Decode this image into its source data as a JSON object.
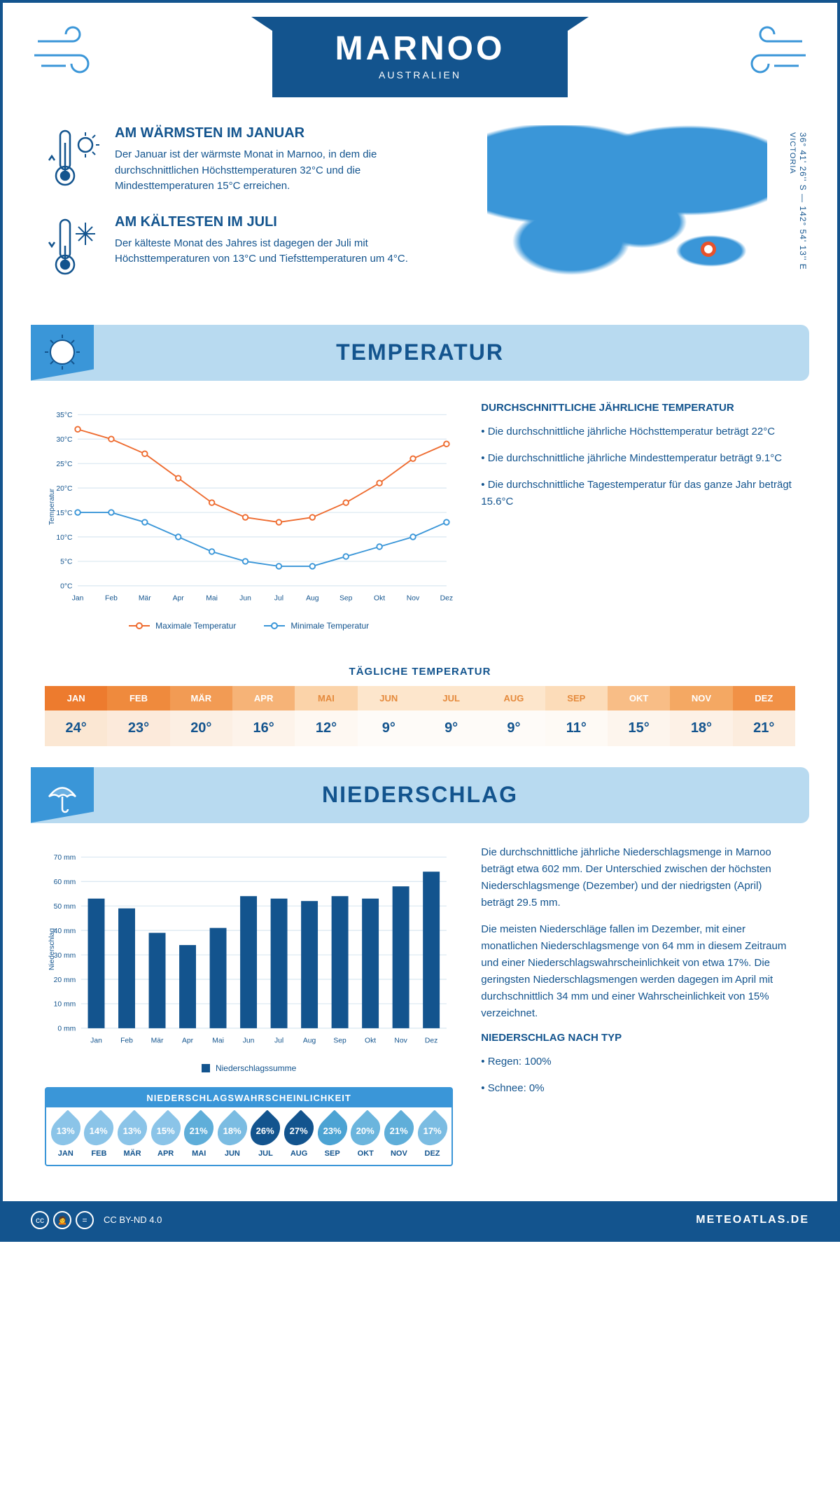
{
  "header": {
    "title": "MARNOO",
    "subtitle": "AUSTRALIEN",
    "coords": "36° 41' 26'' S — 142° 54' 13'' E",
    "region": "VICTORIA",
    "marker": {
      "left_pct": 79,
      "top_pct": 77
    }
  },
  "intro": {
    "warm": {
      "title": "AM WÄRMSTEN IM JANUAR",
      "text": "Der Januar ist der wärmste Monat in Marnoo, in dem die durchschnittlichen Höchsttemperaturen 32°C und die Mindesttemperaturen 15°C erreichen."
    },
    "cold": {
      "title": "AM KÄLTESTEN IM JULI",
      "text": "Der kälteste Monat des Jahres ist dagegen der Juli mit Höchsttemperaturen von 13°C und Tiefsttemperaturen um 4°C."
    }
  },
  "months": [
    "Jan",
    "Feb",
    "Mär",
    "Apr",
    "Mai",
    "Jun",
    "Jul",
    "Aug",
    "Sep",
    "Okt",
    "Nov",
    "Dez"
  ],
  "months_upper": [
    "JAN",
    "FEB",
    "MÄR",
    "APR",
    "MAI",
    "JUN",
    "JUL",
    "AUG",
    "SEP",
    "OKT",
    "NOV",
    "DEZ"
  ],
  "temperature": {
    "section_title": "TEMPERATUR",
    "chart": {
      "type": "line",
      "ylabel": "Temperatur",
      "ylim": [
        0,
        35
      ],
      "ytick_step": 5,
      "y_suffix": "°C",
      "max": {
        "values": [
          32,
          30,
          27,
          22,
          17,
          14,
          13,
          14,
          17,
          21,
          26,
          29
        ],
        "color": "#ee6b2f",
        "label": "Maximale Temperatur"
      },
      "min": {
        "values": [
          15,
          15,
          13,
          10,
          7,
          5,
          4,
          4,
          6,
          8,
          10,
          13
        ],
        "color": "#3a96d8",
        "label": "Minimale Temperatur"
      },
      "grid_color": "#cfe0ee",
      "axis_color": "#13548e",
      "tick_fontsize": 11,
      "label_fontsize": 11,
      "line_width": 2,
      "marker_size": 4
    },
    "info": {
      "title": "DURCHSCHNITTLICHE JÄHRLICHE TEMPERATUR",
      "b1": "• Die durchschnittliche jährliche Höchsttemperatur beträgt 22°C",
      "b2": "• Die durchschnittliche jährliche Mindesttemperatur beträgt 9.1°C",
      "b3": "• Die durchschnittliche Tagestemperatur für das ganze Jahr beträgt 15.6°C"
    },
    "daily": {
      "title": "TÄGLICHE TEMPERATUR",
      "values": [
        "24°",
        "23°",
        "20°",
        "16°",
        "12°",
        "9°",
        "9°",
        "9°",
        "11°",
        "15°",
        "18°",
        "21°"
      ],
      "header_colors": [
        "#ed7b2e",
        "#ef8a3d",
        "#f29b54",
        "#f6b377",
        "#fbd3a9",
        "#fde6cc",
        "#fde6cc",
        "#fde6cc",
        "#fcdcb9",
        "#f8bd86",
        "#f4a863",
        "#f19146"
      ],
      "header_text": [
        "#fff",
        "#fff",
        "#fff",
        "#fff",
        "#e58a3c",
        "#e58a3c",
        "#e58a3c",
        "#e58a3c",
        "#e58a3c",
        "#fff",
        "#fff",
        "#fff"
      ],
      "value_bg": [
        "#fbe7d3",
        "#fceadb",
        "#fcefe3",
        "#fdf3ea",
        "#fef8f2",
        "#fefbf8",
        "#fefbf8",
        "#fefbf8",
        "#fefaf5",
        "#fdf5ed",
        "#fdf1e6",
        "#fcecdd"
      ]
    }
  },
  "precipitation": {
    "section_title": "NIEDERSCHLAG",
    "chart": {
      "type": "bar",
      "ylabel": "Niederschlag",
      "ylim": [
        0,
        70
      ],
      "ytick_step": 10,
      "y_suffix": " mm",
      "values": [
        53,
        49,
        39,
        34,
        41,
        54,
        53,
        52,
        54,
        53,
        58,
        64
      ],
      "bar_color": "#13548e",
      "label": "Niederschlagssumme",
      "grid_color": "#cfe0ee",
      "axis_color": "#13548e",
      "bar_width": 0.55
    },
    "p1": "Die durchschnittliche jährliche Niederschlagsmenge in Marnoo beträgt etwa 602 mm. Der Unterschied zwischen der höchsten Niederschlagsmenge (Dezember) und der niedrigsten (April) beträgt 29.5 mm.",
    "p2": "Die meisten Niederschläge fallen im Dezember, mit einer monatlichen Niederschlagsmenge von 64 mm in diesem Zeitraum und einer Niederschlagswahrscheinlichkeit von etwa 17%. Die geringsten Niederschlagsmengen werden dagegen im April mit durchschnittlich 34 mm und einer Wahrscheinlichkeit von 15% verzeichnet.",
    "type_title": "NIEDERSCHLAG NACH TYP",
    "type_b1": "• Regen: 100%",
    "type_b2": "• Schnee: 0%",
    "prob": {
      "title": "NIEDERSCHLAGSWAHRSCHEINLICHKEIT",
      "values": [
        "13%",
        "14%",
        "13%",
        "15%",
        "21%",
        "18%",
        "26%",
        "27%",
        "23%",
        "20%",
        "21%",
        "17%"
      ],
      "colors": [
        "#8bc4e8",
        "#8bc4e8",
        "#8bc4e8",
        "#8bc4e8",
        "#5faed9",
        "#7bbce2",
        "#13548e",
        "#13548e",
        "#4ca3d3",
        "#6bb5dd",
        "#5faed9",
        "#7bbce2"
      ]
    }
  },
  "footer": {
    "license": "CC BY-ND 4.0",
    "site": "METEOATLAS.DE"
  }
}
